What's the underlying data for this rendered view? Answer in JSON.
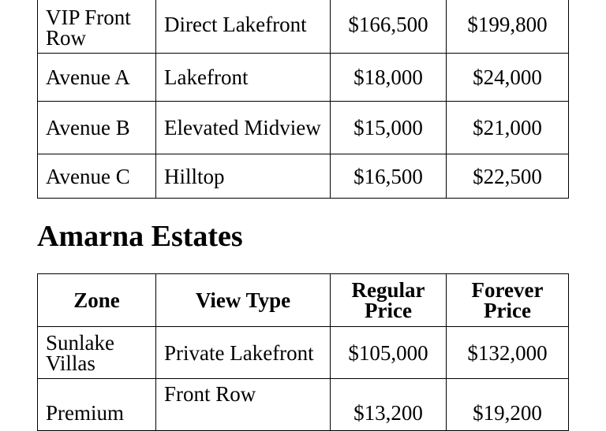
{
  "table1": {
    "rows": [
      [
        "VIP Front Row",
        "Direct Lakefront",
        "$166,500",
        "$199,800"
      ],
      [
        "Avenue A",
        "Lakefront",
        "$18,000",
        "$24,000"
      ],
      [
        "Avenue B",
        "Elevated Midview",
        "$15,000",
        "$21,000"
      ],
      [
        "Avenue C",
        "Hilltop",
        "$16,500",
        "$22,500"
      ]
    ]
  },
  "section_title": "Amarna Estates",
  "table2": {
    "headers": [
      "Zone",
      "View Type",
      "Regular Price",
      "Forever Price"
    ],
    "rows": [
      [
        "Sunlake Villas",
        "Private Lakefront",
        "$105,000",
        "$132,000"
      ],
      [
        "Premium",
        "Front Row",
        "$13,200",
        "$19,200"
      ]
    ]
  }
}
